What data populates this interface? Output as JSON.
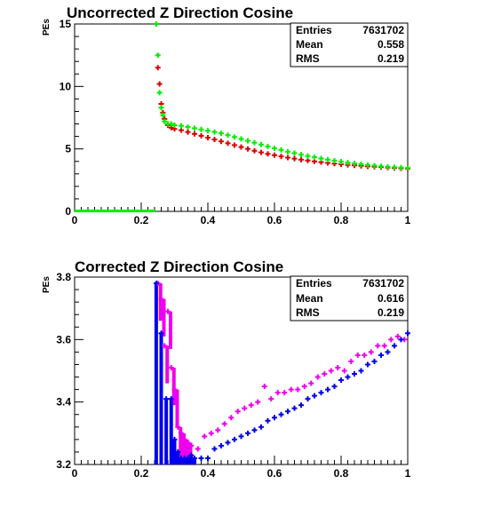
{
  "chart_data": [
    {
      "type": "scatter",
      "title": "Uncorrected Z Direction Cosine",
      "ylabel": "PEs",
      "xlabel": "",
      "xlim": [
        0,
        1
      ],
      "ylim": [
        0,
        15
      ],
      "xticks": [
        "0",
        "0.2",
        "0.4",
        "0.6",
        "0.8",
        "1"
      ],
      "yticks": [
        "0",
        "5",
        "10",
        "15"
      ],
      "stats": [
        {
          "label": "Entries",
          "value": "7631702"
        },
        {
          "label": "Mean",
          "value": "0.558"
        },
        {
          "label": "RMS",
          "value": "0.219"
        }
      ],
      "series": [
        {
          "color": "#dd0000",
          "x": [
            0.25,
            0.255,
            0.26,
            0.265,
            0.27,
            0.28,
            0.29,
            0.3,
            0.32,
            0.34,
            0.36,
            0.38,
            0.4,
            0.42,
            0.44,
            0.46,
            0.48,
            0.5,
            0.52,
            0.54,
            0.56,
            0.58,
            0.6,
            0.62,
            0.64,
            0.66,
            0.68,
            0.7,
            0.72,
            0.74,
            0.76,
            0.78,
            0.8,
            0.82,
            0.84,
            0.86,
            0.88,
            0.9,
            0.92,
            0.94,
            0.96,
            0.98,
            1.0
          ],
          "y": [
            11.5,
            10.2,
            8.6,
            7.9,
            7.4,
            6.9,
            6.7,
            6.6,
            6.5,
            6.35,
            6.2,
            6.05,
            5.9,
            5.75,
            5.6,
            5.45,
            5.3,
            5.15,
            5.0,
            4.85,
            4.72,
            4.6,
            4.5,
            4.4,
            4.3,
            4.22,
            4.14,
            4.07,
            4.0,
            3.94,
            3.88,
            3.82,
            3.77,
            3.72,
            3.68,
            3.64,
            3.6,
            3.57,
            3.54,
            3.5,
            3.47,
            3.44,
            3.42
          ]
        },
        {
          "color": "#00ee00",
          "x": [
            0.245,
            0.25,
            0.255,
            0.26,
            0.265,
            0.27,
            0.28,
            0.29,
            0.3,
            0.32,
            0.34,
            0.36,
            0.38,
            0.4,
            0.42,
            0.44,
            0.46,
            0.48,
            0.5,
            0.52,
            0.54,
            0.56,
            0.58,
            0.6,
            0.62,
            0.64,
            0.66,
            0.68,
            0.7,
            0.72,
            0.74,
            0.76,
            0.78,
            0.8,
            0.82,
            0.84,
            0.86,
            0.88,
            0.9,
            0.92,
            0.94,
            0.96,
            0.98,
            1.0
          ],
          "y": [
            15.0,
            12.5,
            9.5,
            8.3,
            7.7,
            7.2,
            7.0,
            7.0,
            6.9,
            6.85,
            6.75,
            6.65,
            6.55,
            6.45,
            6.35,
            6.25,
            6.1,
            5.95,
            5.8,
            5.65,
            5.5,
            5.35,
            5.2,
            5.05,
            4.92,
            4.78,
            4.66,
            4.54,
            4.43,
            4.33,
            4.23,
            4.14,
            4.06,
            3.98,
            3.9,
            3.83,
            3.77,
            3.71,
            3.66,
            3.61,
            3.57,
            3.53,
            3.5,
            3.47
          ]
        }
      ]
    },
    {
      "type": "scatter",
      "title": "Corrected Z Direction Cosine",
      "ylabel": "PEs",
      "xlabel": "",
      "xlim": [
        0,
        1
      ],
      "ylim": [
        3.2,
        3.8
      ],
      "xticks": [
        "0",
        "0.2",
        "0.4",
        "0.6",
        "0.8",
        "1"
      ],
      "yticks": [
        "3.2",
        "3.4",
        "3.6",
        "3.8"
      ],
      "stats": [
        {
          "label": "Entries",
          "value": "7631702"
        },
        {
          "label": "Mean",
          "value": "0.616"
        },
        {
          "label": "RMS",
          "value": "0.219"
        }
      ],
      "series": [
        {
          "color": "#ee00ee",
          "x": [
            0.25,
            0.26,
            0.27,
            0.28,
            0.29,
            0.3,
            0.31,
            0.32,
            0.33,
            0.34,
            0.35,
            0.37,
            0.39,
            0.41,
            0.43,
            0.45,
            0.47,
            0.49,
            0.51,
            0.53,
            0.55,
            0.57,
            0.59,
            0.61,
            0.63,
            0.65,
            0.67,
            0.69,
            0.71,
            0.73,
            0.75,
            0.77,
            0.79,
            0.81,
            0.83,
            0.85,
            0.87,
            0.89,
            0.91,
            0.93,
            0.95,
            0.97,
            0.99
          ],
          "y": [
            3.78,
            3.73,
            3.58,
            3.69,
            3.51,
            3.44,
            3.32,
            3.3,
            3.28,
            3.27,
            3.26,
            3.25,
            3.29,
            3.3,
            3.31,
            3.33,
            3.35,
            3.37,
            3.38,
            3.39,
            3.4,
            3.45,
            3.41,
            3.43,
            3.43,
            3.44,
            3.44,
            3.45,
            3.46,
            3.48,
            3.49,
            3.5,
            3.51,
            3.5,
            3.53,
            3.55,
            3.55,
            3.56,
            3.58,
            3.58,
            3.6,
            3.61,
            3.6
          ]
        },
        {
          "color": "#0000ee",
          "x": [
            0.245,
            0.26,
            0.275,
            0.29,
            0.3,
            0.31,
            0.32,
            0.33,
            0.34,
            0.35,
            0.36,
            0.38,
            0.4,
            0.42,
            0.44,
            0.46,
            0.48,
            0.5,
            0.52,
            0.54,
            0.56,
            0.58,
            0.6,
            0.62,
            0.64,
            0.66,
            0.68,
            0.7,
            0.72,
            0.74,
            0.76,
            0.78,
            0.8,
            0.82,
            0.84,
            0.86,
            0.88,
            0.9,
            0.92,
            0.94,
            0.96,
            0.98,
            1.0
          ],
          "y": [
            3.78,
            3.62,
            3.41,
            3.41,
            3.28,
            3.24,
            3.22,
            3.22,
            3.22,
            3.23,
            3.22,
            3.22,
            3.22,
            3.25,
            3.26,
            3.27,
            3.28,
            3.29,
            3.3,
            3.31,
            3.32,
            3.34,
            3.35,
            3.36,
            3.37,
            3.38,
            3.39,
            3.41,
            3.42,
            3.43,
            3.44,
            3.45,
            3.47,
            3.48,
            3.49,
            3.5,
            3.52,
            3.53,
            3.55,
            3.56,
            3.58,
            3.6,
            3.62
          ]
        }
      ]
    }
  ]
}
